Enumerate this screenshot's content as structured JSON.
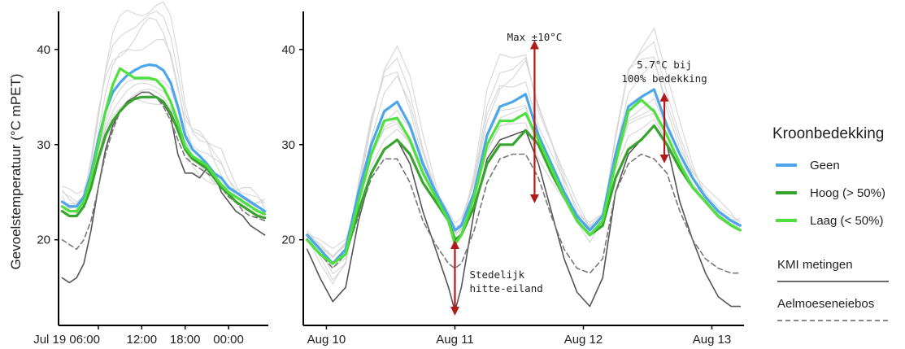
{
  "chart_data": {
    "type": "line",
    "ylabel": "Gevoelstemperatuur (°C mPET)",
    "y_ticks": [
      20,
      30,
      40
    ],
    "panels": [
      {
        "x_ticks": [
          "Jul 19 06:00",
          "12:00",
          "18:00",
          "00:00"
        ],
        "x_tick_hours": [
          6,
          12,
          18,
          24
        ],
        "x_range_hours": [
          0.5,
          29.5
        ],
        "ylim": [
          11,
          44
        ],
        "series": [
          {
            "name": "Geen",
            "x": [
              1,
              2,
              3,
              4,
              5,
              6,
              7,
              8,
              9,
              10,
              11,
              12,
              13,
              14,
              15,
              16,
              17,
              18,
              19,
              20,
              21,
              22,
              23,
              24,
              25,
              26,
              27,
              28,
              29
            ],
            "values": [
              24,
              23.5,
              23.5,
              24.5,
              27,
              30.5,
              33.5,
              35.5,
              36.5,
              37.3,
              37.8,
              38.2,
              38.4,
              38.3,
              37.8,
              36.5,
              34,
              31,
              29.5,
              28.8,
              28,
              27,
              26.5,
              25.5,
              25,
              24.5,
              24,
              23.5,
              23
            ]
          },
          {
            "name": "Hoog (> 50%)",
            "x": [
              1,
              2,
              3,
              4,
              5,
              6,
              7,
              8,
              9,
              10,
              11,
              12,
              13,
              14,
              15,
              16,
              17,
              18,
              19,
              20,
              21,
              22,
              23,
              24,
              25,
              26,
              27,
              28,
              29
            ],
            "values": [
              23,
              22.5,
              22.5,
              23.5,
              25.5,
              28.5,
              31,
              32.5,
              33.5,
              34.3,
              34.8,
              35,
              35,
              35,
              34.5,
              33.3,
              31.5,
              29.5,
              28.5,
              28,
              27.5,
              26.5,
              25.5,
              24.8,
              24,
              23.5,
              23,
              22.5,
              22.3
            ]
          },
          {
            "name": "Laag (< 50%)",
            "x": [
              1,
              2,
              3,
              4,
              5,
              6,
              7,
              8,
              9,
              10,
              11,
              12,
              13,
              14,
              15,
              16,
              17,
              18,
              19,
              20,
              21,
              22,
              23,
              24,
              25,
              26,
              27,
              28,
              29
            ],
            "values": [
              23.5,
              23,
              23,
              24,
              26.5,
              30,
              33.5,
              36.3,
              38,
              37.5,
              37,
              37,
              37,
              36.8,
              36,
              34.5,
              32.3,
              29.8,
              28.8,
              28.3,
              27.8,
              26.8,
              25.8,
              25,
              24.5,
              24,
              23.5,
              23,
              22.7
            ]
          },
          {
            "name": "KMI metingen",
            "x": [
              1,
              2,
              3,
              4,
              5,
              6,
              7,
              8,
              9,
              10,
              11,
              12,
              13,
              14,
              15,
              16,
              17,
              18,
              19,
              20,
              21,
              22,
              23,
              24,
              25,
              26,
              27,
              28,
              29
            ],
            "values": [
              16,
              15.5,
              16,
              17.5,
              21,
              25.5,
              29.5,
              32,
              33.5,
              34.5,
              35,
              35.5,
              35.5,
              35,
              34.3,
              33,
              29,
              27,
              27,
              26.5,
              27.5,
              27,
              25,
              24,
              23,
              22.5,
              21.5,
              21,
              20.5
            ]
          },
          {
            "name": "Aelmoeseneiebos",
            "x": [
              1,
              2,
              3,
              4,
              5,
              6,
              7,
              8,
              9,
              10,
              11,
              12,
              13,
              14,
              15,
              16,
              17,
              18,
              19,
              20,
              21,
              22,
              23,
              24,
              25,
              26,
              27,
              28,
              29
            ],
            "values": [
              20,
              19.5,
              19,
              20,
              22,
              25.5,
              29,
              31.5,
              33.5,
              34.3,
              35,
              35.5,
              35.5,
              35,
              34,
              32.5,
              30.5,
              28.7,
              28,
              27.5,
              27,
              26.5,
              25.5,
              24.5,
              24,
              23,
              22.5,
              22.3,
              22
            ]
          }
        ]
      },
      {
        "x_ticks": [
          "Aug 10",
          "Aug 11",
          "Aug 12",
          "Aug 13"
        ],
        "x_tick_days": [
          0,
          1,
          2,
          3
        ],
        "x_range_days": [
          -0.18,
          3.25
        ],
        "ylim": [
          11,
          44
        ],
        "series": [
          {
            "name": "Geen",
            "x": [
              -0.15,
              -0.05,
              0.05,
              0.15,
              0.25,
              0.35,
              0.45,
              0.55,
              0.65,
              0.75,
              0.85,
              0.95,
              1.0,
              1.05,
              1.15,
              1.25,
              1.35,
              1.45,
              1.55,
              1.65,
              1.75,
              1.85,
              1.95,
              2.05,
              2.15,
              2.25,
              2.35,
              2.45,
              2.55,
              2.65,
              2.75,
              2.85,
              2.95,
              3.05,
              3.15,
              3.22
            ],
            "values": [
              20.5,
              19,
              17.5,
              19,
              25,
              30,
              33.5,
              34.5,
              32,
              28,
              25,
              22.5,
              21,
              21.5,
              25,
              31,
              34,
              34.5,
              35.3,
              31,
              28,
              25,
              22.5,
              21,
              22.5,
              29,
              34,
              35,
              35.8,
              32,
              29,
              26.5,
              24.5,
              23,
              22,
              21.5
            ]
          },
          {
            "name": "Hoog (> 50%)",
            "x": [
              -0.15,
              -0.05,
              0.05,
              0.15,
              0.25,
              0.35,
              0.45,
              0.55,
              0.65,
              0.75,
              0.85,
              0.95,
              1.0,
              1.05,
              1.15,
              1.25,
              1.35,
              1.45,
              1.55,
              1.65,
              1.75,
              1.85,
              1.95,
              2.05,
              2.15,
              2.25,
              2.35,
              2.45,
              2.55,
              2.65,
              2.75,
              2.85,
              2.95,
              3.05,
              3.15,
              3.22
            ],
            "values": [
              20,
              18.5,
              17.5,
              18.5,
              23,
              27,
              29.5,
              30.5,
              29,
              26,
              24,
              22,
              20,
              20.5,
              23.5,
              28,
              30,
              30,
              31.5,
              30,
              27,
              24.5,
              22,
              20.5,
              21.5,
              26.5,
              29.5,
              30.5,
              32,
              30,
              27.5,
              25.5,
              24,
              22.5,
              21.5,
              21
            ]
          },
          {
            "name": "Laag (< 50%)",
            "x": [
              -0.15,
              -0.05,
              0.05,
              0.15,
              0.25,
              0.35,
              0.45,
              0.55,
              0.65,
              0.75,
              0.85,
              0.95,
              1.0,
              1.05,
              1.15,
              1.25,
              1.35,
              1.45,
              1.55,
              1.65,
              1.75,
              1.85,
              1.95,
              2.05,
              2.15,
              2.25,
              2.35,
              2.45,
              2.55,
              2.65,
              2.75,
              2.85,
              2.95,
              3.05,
              3.15,
              3.22
            ],
            "values": [
              20,
              18.5,
              17.5,
              18.5,
              24,
              29,
              32.5,
              32.8,
              30.5,
              27,
              24.5,
              22,
              19.5,
              20.5,
              24.5,
              30,
              32.5,
              32.5,
              33.3,
              30.5,
              27.5,
              24.5,
              22,
              20.5,
              22,
              28,
              33.5,
              34.7,
              33.5,
              31,
              28,
              25.5,
              24,
              22.5,
              21.5,
              21
            ]
          },
          {
            "name": "KMI metingen",
            "x": [
              -0.15,
              -0.05,
              0.05,
              0.15,
              0.25,
              0.35,
              0.45,
              0.55,
              0.65,
              0.75,
              0.85,
              0.95,
              1.0,
              1.05,
              1.15,
              1.25,
              1.35,
              1.45,
              1.55,
              1.65,
              1.75,
              1.85,
              1.95,
              2.05,
              2.15,
              2.25,
              2.35,
              2.45,
              2.55,
              2.65,
              2.75,
              2.85,
              2.95,
              3.05,
              3.15,
              3.22
            ],
            "values": [
              19,
              16,
              13.5,
              15,
              22,
              27,
              29.5,
              30.5,
              28,
              23,
              19,
              15,
              12.5,
              15,
              23,
              28.5,
              30.5,
              31,
              31.5,
              28,
              23,
              18,
              14.5,
              13,
              16,
              25,
              29,
              30.5,
              32,
              30,
              24,
              20,
              16.5,
              14,
              13,
              13
            ]
          },
          {
            "name": "Aelmoeseneiebos",
            "x": [
              -0.15,
              -0.05,
              0.05,
              0.15,
              0.25,
              0.35,
              0.45,
              0.55,
              0.65,
              0.75,
              0.85,
              0.95,
              1.0,
              1.05,
              1.15,
              1.25,
              1.35,
              1.45,
              1.55,
              1.65,
              1.75,
              1.85,
              1.95,
              2.05,
              2.15,
              2.25,
              2.35,
              2.45,
              2.55,
              2.65,
              2.75,
              2.85,
              2.95,
              3.05,
              3.15,
              3.22
            ],
            "values": [
              20,
              18.5,
              17,
              18.5,
              22.5,
              26.5,
              28.5,
              28.5,
              26,
              22,
              19.5,
              17.5,
              17,
              17.5,
              21,
              26,
              28.5,
              29,
              29,
              26.5,
              22.5,
              19,
              17,
              16.5,
              18,
              25,
              28,
              29,
              28.5,
              27,
              23,
              20,
              18,
              17,
              16.5,
              16.5
            ]
          }
        ]
      }
    ],
    "colors": {
      "Geen": "#4da6ea",
      "Hoog (> 50%)": "#38a32f",
      "Laag (< 50%)": "#4ee03f",
      "KMI metingen": "#555555",
      "Aelmoeseneiebos": "#777777",
      "station_traces": "#d6d6d6",
      "annotation_arrow": "#b11a1a"
    },
    "annotations": [
      {
        "id": "uhi",
        "panel": 1,
        "lines": [
          "Stedelijk",
          "hitte-eiland"
        ],
        "x": 1.0,
        "y_from": 12.5,
        "y_to": 19.5
      },
      {
        "id": "max",
        "panel": 1,
        "lines": [
          "Max ±10°C"
        ],
        "x": 1.62,
        "y_from": 24.3,
        "y_to": 40.5
      },
      {
        "id": "bij",
        "panel": 1,
        "lines": [
          "5.7°C bij",
          "100% bedekking"
        ],
        "x": 2.63,
        "y_from": 28.5,
        "y_to": 35
      }
    ],
    "legend": {
      "title": "Kroonbedekking",
      "placement": "right",
      "items": [
        "Geen",
        "Hoog (> 50%)",
        "Laag (< 50%)"
      ],
      "extra_items": [
        "KMI metingen",
        "Aelmoeseneiebos"
      ]
    }
  }
}
